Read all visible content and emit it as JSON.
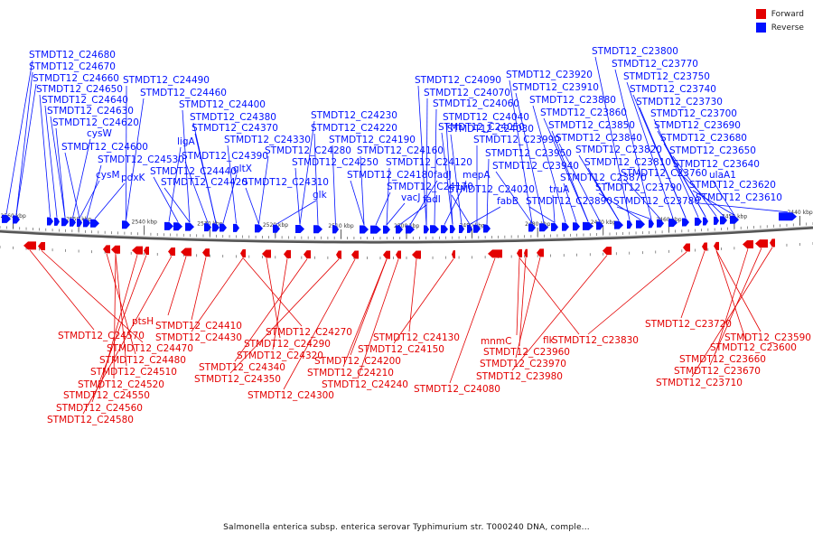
{
  "legend": {
    "forward_label": "Forward",
    "reverse_label": "Reverse",
    "forward_color": "#e30000",
    "reverse_color": "#0010ff"
  },
  "caption": "Salmonella enterica subsp. enterica serovar Typhimurium str. T000240 DNA, comple...",
  "axis": {
    "start_kbp": 2562,
    "end_kbp": 2438,
    "tick_labels": [
      "2560 kbp",
      "2550 kbp",
      "2540 kbp",
      "2530 kbp",
      "2520 kbp",
      "2510 kbp",
      "2500 kbp",
      "2490 kbp",
      "2480 kbp",
      "2470 kbp",
      "2460 kbp",
      "2450 kbp",
      "2440 kbp"
    ],
    "tick_kbp": [
      2560,
      2550,
      2540,
      2530,
      2520,
      2510,
      2500,
      2490,
      2480,
      2470,
      2460,
      2450,
      2440
    ]
  },
  "reverse_labels": [
    "STMDT12_C24680",
    "STMDT12_C24670",
    "STMDT12_C24660",
    "STMDT12_C24650",
    "STMDT12_C24640",
    "STMDT12_C24630",
    "STMDT12_C24620",
    "cysW",
    "STMDT12_C24600",
    "cysM",
    "STMDT12_C24530",
    "pdxK",
    "STMDT12_C24490",
    "STMDT12_C24460",
    "ligA",
    "STMDT12_C24440",
    "STMDT12_C24420",
    "STMDT12_C24400",
    "STMDT12_C24390",
    "STMDT12_C24380",
    "STMDT12_C24370",
    "gltX",
    "STMDT12_C24330",
    "STMDT12_C24310",
    "STMDT12_C24280",
    "glk",
    "STMDT12_C24250",
    "STMDT12_C24230",
    "STMDT12_C24220",
    "STMDT12_C24190",
    "STMDT12_C24180",
    "STMDT12_C24160",
    "STMDT12_C24170",
    "vacJ",
    "STMDT12_C24120",
    "fadI",
    "fadJ",
    "STMDT12_C24090",
    "STMDT12_C24070",
    "STMDT12_C24060",
    "mepA",
    "STMDT12_C24050",
    "STMDT12_C24040",
    "STMDT12_C24030",
    "STMDT12_C24020",
    "fabB",
    "STMDT12_C23990",
    "STMDT12_C23950",
    "STMDT12_C23940",
    "STMDT12_C23920",
    "STMDT12_C23910",
    "STMDT12_C23890",
    "truA",
    "STMDT12_C23880",
    "STMDT12_C23870",
    "STMDT12_C23860",
    "STMDT12_C23850",
    "STMDT12_C23840",
    "STMDT12_C23820",
    "STMDT12_C23810",
    "STMDT12_C23800",
    "STMDT12_C23790",
    "STMDT12_C23780",
    "STMDT12_C23770",
    "STMDT12_C23760",
    "STMDT12_C23750",
    "STMDT12_C23740",
    "STMDT12_C23730",
    "STMDT12_C23700",
    "STMDT12_C23690",
    "STMDT12_C23680",
    "STMDT12_C23650",
    "STMDT12_C23640",
    "ulaA1",
    "STMDT12_C23620",
    "STMDT12_C23610"
  ],
  "forward_labels": [
    "STMDT12_C24570",
    "STMDT12_C24470",
    "STMDT12_C24480",
    "STMDT12_C24510",
    "STMDT12_C24520",
    "STMDT12_C24550",
    "STMDT12_C24560",
    "STMDT12_C24580",
    "ptsH",
    "STMDT12_C24410",
    "STMDT12_C24430",
    "STMDT12_C24270",
    "STMDT12_C24290",
    "STMDT12_C24320",
    "STMDT12_C24340",
    "STMDT12_C24350",
    "STMDT12_C24300",
    "STMDT12_C24200",
    "STMDT12_C24210",
    "STMDT12_C24240",
    "STMDT12_C24130",
    "STMDT12_C24150",
    "STMDT12_C24080",
    "mnmC",
    "flk",
    "STMDT12_C23960",
    "STMDT12_C23970",
    "STMDT12_C23980",
    "STMDT12_C23830",
    "STMDT12_C23720",
    "STMDT12_C23590",
    "STMDT12_C23600",
    "STMDT12_C23660",
    "STMDT12_C23670",
    "STMDT12_C23710"
  ]
}
